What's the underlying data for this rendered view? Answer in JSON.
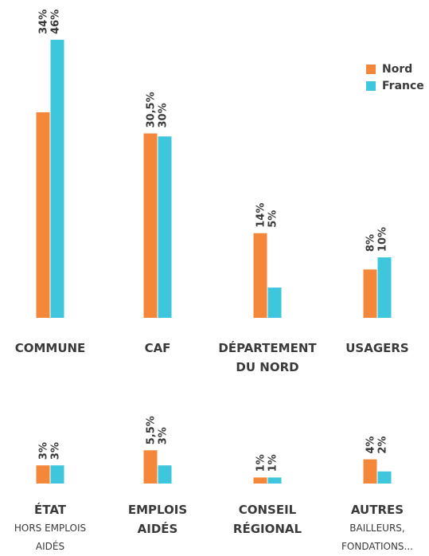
{
  "chart_data": {
    "type": "bar",
    "categories": [
      "COMMUNE",
      "CAF",
      "DÉPARTEMENT DU NORD",
      "USAGERS",
      "ÉTAT",
      "EMPLOIS AIDÉS",
      "CONSEIL RÉGIONAL",
      "AUTRES"
    ],
    "subcategories": [
      null,
      null,
      null,
      null,
      "HORS EMPLOIS AIDÉS",
      null,
      null,
      "BAILLEURS, FONDATIONS..."
    ],
    "series": [
      {
        "name": "Nord",
        "color": "#f5873a",
        "values": [
          34,
          30.5,
          14,
          8,
          3,
          5.5,
          1,
          4
        ],
        "value_labels": [
          "34%",
          "30,5%",
          "14%",
          "8%",
          "3%",
          "5,5%",
          "1%",
          "4%"
        ]
      },
      {
        "name": "France",
        "color": "#3ec6dc",
        "values": [
          46,
          30,
          5,
          10,
          3,
          3,
          1,
          2
        ],
        "value_labels": [
          "46%",
          "30%",
          "5%",
          "10%",
          "3%",
          "3%",
          "1%",
          "2%"
        ]
      }
    ],
    "legend": "top-right"
  }
}
